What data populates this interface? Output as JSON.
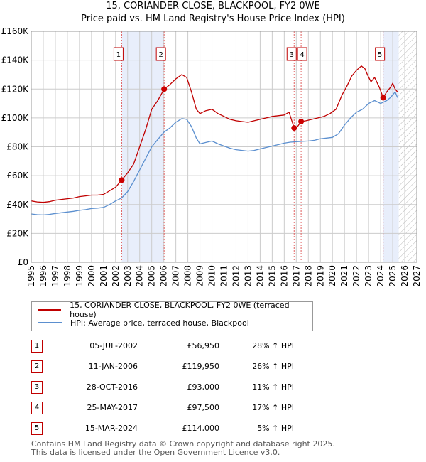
{
  "title_line1": "15, CORIANDER CLOSE, BLACKPOOL, FY2 0WE",
  "title_line2": "Price paid vs. HM Land Registry's House Price Index (HPI)",
  "colors": {
    "property": "#c00000",
    "hpi": "#5b8fcf",
    "highlight": "#e8eefb",
    "grid": "#cccccc"
  },
  "chart_data": {
    "type": "line",
    "ylim": [
      0,
      160000
    ],
    "xlim": [
      1995,
      2027
    ],
    "y_ticks": [
      0,
      20000,
      40000,
      60000,
      80000,
      100000,
      120000,
      140000,
      160000
    ],
    "y_tick_labels": [
      "£0",
      "£20K",
      "£40K",
      "£60K",
      "£80K",
      "£100K",
      "£120K",
      "£140K",
      "£160K"
    ],
    "x_ticks": [
      1995,
      1996,
      1997,
      1998,
      1999,
      2000,
      2001,
      2002,
      2003,
      2004,
      2005,
      2006,
      2007,
      2008,
      2009,
      2010,
      2011,
      2012,
      2013,
      2014,
      2015,
      2016,
      2017,
      2018,
      2019,
      2020,
      2021,
      2022,
      2023,
      2024,
      2025,
      2026,
      2027
    ],
    "x_tick_labels": [
      "1995",
      "1996",
      "1997",
      "1998",
      "1999",
      "2000",
      "2001",
      "2002",
      "2003",
      "2004",
      "2005",
      "2006",
      "2007",
      "2008",
      "2009",
      "2010",
      "2011",
      "2012",
      "2013",
      "2014",
      "2015",
      "2016",
      "2017",
      "2018",
      "2019",
      "2020",
      "2021",
      "2022",
      "2023",
      "2024",
      "2025",
      "2026",
      "2027"
    ],
    "shaded_ranges": [
      [
        2002.51,
        2006.03
      ],
      [
        2024.2,
        2025.5
      ]
    ],
    "hatch_from": 2025.5,
    "series": [
      {
        "name": "15, CORIANDER CLOSE, BLACKPOOL, FY2 0WE (terraced house)",
        "x": [
          1995,
          1995.5,
          1996,
          1996.5,
          1997,
          1997.5,
          1998,
          1998.5,
          1999,
          1999.5,
          2000,
          2000.5,
          2001,
          2001.5,
          2002,
          2002.51,
          2003,
          2003.5,
          2004,
          2004.5,
          2005,
          2005.5,
          2006.03,
          2006.5,
          2007,
          2007.5,
          2007.9,
          2008.3,
          2008.7,
          2009,
          2009.5,
          2010,
          2010.5,
          2011,
          2011.5,
          2012,
          2012.5,
          2013,
          2013.5,
          2014,
          2014.5,
          2015,
          2015.5,
          2016,
          2016.4,
          2016.82,
          2017.1,
          2017.4,
          2017.8,
          2018.3,
          2018.8,
          2019.3,
          2019.8,
          2020.3,
          2020.8,
          2021.2,
          2021.6,
          2022,
          2022.4,
          2022.7,
          2022.9,
          2023.2,
          2023.5,
          2023.9,
          2024.21,
          2024.5,
          2024.8,
          2025,
          2025.2,
          2025.4
        ],
        "values": [
          42500,
          41800,
          41500,
          42000,
          43000,
          43500,
          44000,
          44500,
          45500,
          46000,
          46500,
          46500,
          47000,
          49500,
          52000,
          56950,
          62000,
          68000,
          80000,
          92000,
          106000,
          112000,
          119950,
          123000,
          127000,
          130000,
          128000,
          118000,
          106000,
          103000,
          105000,
          106000,
          103000,
          101000,
          99000,
          98000,
          97500,
          97000,
          98000,
          99000,
          100000,
          101000,
          101500,
          102000,
          104000,
          93000,
          94000,
          97500,
          98000,
          99000,
          100000,
          101000,
          103000,
          106000,
          116000,
          122000,
          129000,
          133000,
          136000,
          134000,
          130000,
          125000,
          128000,
          121000,
          114000,
          118000,
          121000,
          124000,
          120000,
          118000
        ]
      },
      {
        "name": "HPI: Average price, terraced house, Blackpool",
        "x": [
          1995,
          1995.5,
          1996,
          1996.5,
          1997,
          1997.5,
          1998,
          1998.5,
          1999,
          1999.5,
          2000,
          2000.5,
          2001,
          2001.5,
          2002,
          2002.5,
          2003,
          2003.5,
          2004,
          2004.5,
          2005,
          2005.5,
          2006,
          2006.5,
          2007,
          2007.5,
          2007.9,
          2008.3,
          2008.7,
          2009,
          2009.5,
          2010,
          2010.5,
          2011,
          2011.5,
          2012,
          2012.5,
          2013,
          2013.5,
          2014,
          2014.5,
          2015,
          2015.5,
          2016,
          2016.5,
          2017,
          2017.5,
          2018,
          2018.5,
          2019,
          2019.5,
          2020,
          2020.5,
          2021,
          2021.5,
          2022,
          2022.5,
          2023,
          2023.5,
          2024,
          2024.5,
          2024.8,
          2025,
          2025.2,
          2025.4
        ],
        "values": [
          33500,
          33000,
          32800,
          33200,
          33800,
          34300,
          34800,
          35300,
          36000,
          36500,
          37200,
          37500,
          38000,
          40000,
          42500,
          44500,
          49000,
          56000,
          64000,
          72000,
          80000,
          85000,
          90000,
          93000,
          97000,
          99500,
          99000,
          94000,
          86000,
          82000,
          83000,
          84000,
          82000,
          80500,
          79000,
          78000,
          77500,
          77000,
          77500,
          78500,
          79500,
          80500,
          81500,
          82500,
          83200,
          83500,
          83800,
          84000,
          84500,
          85500,
          86000,
          86500,
          89000,
          95000,
          100000,
          104000,
          106000,
          110000,
          112000,
          110000,
          112000,
          114000,
          116000,
          118000,
          114000
        ]
      }
    ],
    "sales": [
      {
        "label": "1",
        "x": 2002.51,
        "value": 56950
      },
      {
        "label": "2",
        "x": 2006.03,
        "value": 119950
      },
      {
        "label": "3",
        "x": 2016.82,
        "value": 93000
      },
      {
        "label": "4",
        "x": 2017.4,
        "value": 97500
      },
      {
        "label": "5",
        "x": 2024.21,
        "value": 114000
      }
    ]
  },
  "legend": {
    "property": "15, CORIANDER CLOSE, BLACKPOOL, FY2 0WE (terraced house)",
    "hpi": "HPI: Average price, terraced house, Blackpool"
  },
  "table": [
    {
      "num": "1",
      "date": "05-JUL-2002",
      "price": "£56,950",
      "hpi": "28% ↑ HPI"
    },
    {
      "num": "2",
      "date": "11-JAN-2006",
      "price": "£119,950",
      "hpi": "26% ↑ HPI"
    },
    {
      "num": "3",
      "date": "28-OCT-2016",
      "price": "£93,000",
      "hpi": "11% ↑ HPI"
    },
    {
      "num": "4",
      "date": "25-MAY-2017",
      "price": "£97,500",
      "hpi": "17% ↑ HPI"
    },
    {
      "num": "5",
      "date": "15-MAR-2024",
      "price": "£114,000",
      "hpi": "5% ↑ HPI"
    }
  ],
  "footer_line1": "Contains HM Land Registry data © Crown copyright and database right 2025.",
  "footer_line2": "This data is licensed under the Open Government Licence v3.0."
}
